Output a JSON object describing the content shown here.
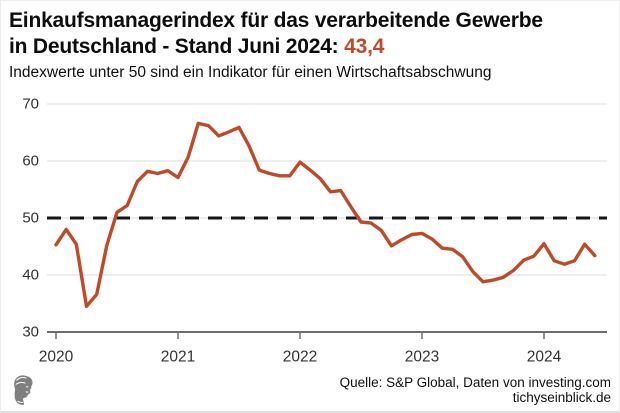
{
  "header": {
    "title_line1": "Einkaufsmanagerindex für das verarbeitende Gewerbe",
    "title_line2_prefix": "in Deutschland - Stand Juni 2024: ",
    "title_value": "43,4",
    "subtitle": "Indexwerte unter 50 sind ein Indikator für einen Wirtschaftsabschwung"
  },
  "chart_data": {
    "type": "line",
    "title": "Einkaufsmanagerindex für das verarbeitende Gewerbe in Deutschland - Stand Juni 2024: 43,4",
    "x": [
      "2020-01",
      "2020-02",
      "2020-03",
      "2020-04",
      "2020-05",
      "2020-06",
      "2020-07",
      "2020-08",
      "2020-09",
      "2020-10",
      "2020-11",
      "2020-12",
      "2021-01",
      "2021-02",
      "2021-03",
      "2021-04",
      "2021-05",
      "2021-06",
      "2021-07",
      "2021-08",
      "2021-09",
      "2021-10",
      "2021-11",
      "2021-12",
      "2022-01",
      "2022-02",
      "2022-03",
      "2022-04",
      "2022-05",
      "2022-06",
      "2022-07",
      "2022-08",
      "2022-09",
      "2022-10",
      "2022-11",
      "2022-12",
      "2023-01",
      "2023-02",
      "2023-03",
      "2023-04",
      "2023-05",
      "2023-06",
      "2023-07",
      "2023-08",
      "2023-09",
      "2023-10",
      "2023-11",
      "2023-12",
      "2024-01",
      "2024-02",
      "2024-03",
      "2024-04",
      "2024-05",
      "2024-06"
    ],
    "series": [
      {
        "name": "Einkaufsmanagerindex verarbeitendes Gewerbe Deutschland",
        "values": [
          45.3,
          48.0,
          45.4,
          34.5,
          36.6,
          45.2,
          51.0,
          52.2,
          56.4,
          58.2,
          57.8,
          58.3,
          57.1,
          60.7,
          66.6,
          66.2,
          64.4,
          65.1,
          65.9,
          62.6,
          58.4,
          57.8,
          57.4,
          57.4,
          59.8,
          58.4,
          56.9,
          54.6,
          54.8,
          52.0,
          49.3,
          49.1,
          47.8,
          45.1,
          46.2,
          47.1,
          47.3,
          46.3,
          44.7,
          44.5,
          43.2,
          40.6,
          38.8,
          39.1,
          39.6,
          40.8,
          42.6,
          43.3,
          45.5,
          42.5,
          41.9,
          42.5,
          45.4,
          43.4
        ]
      }
    ],
    "xticks": [
      "2020",
      "2021",
      "2022",
      "2023",
      "2024"
    ],
    "yticks": [
      30,
      40,
      50,
      60,
      70
    ],
    "ylim": [
      30,
      70
    ],
    "threshold": {
      "value": 50,
      "style": "dashed",
      "color": "#151515"
    },
    "line_color": "#c04a28",
    "grid": "horizontal-light",
    "legend": "none"
  },
  "footer": {
    "source_line1": "Quelle: S&P Global, Daten von investing.com",
    "source_line2": "tichyseinblick.de",
    "logo": "tichys-einblick-mercury-head"
  },
  "colors": {
    "accent": "#bf4a28",
    "text": "#111111",
    "axis": "#6e6e6e",
    "tick_label": "#333333",
    "grid": "#dcdcdc",
    "background": "#ffffff"
  }
}
